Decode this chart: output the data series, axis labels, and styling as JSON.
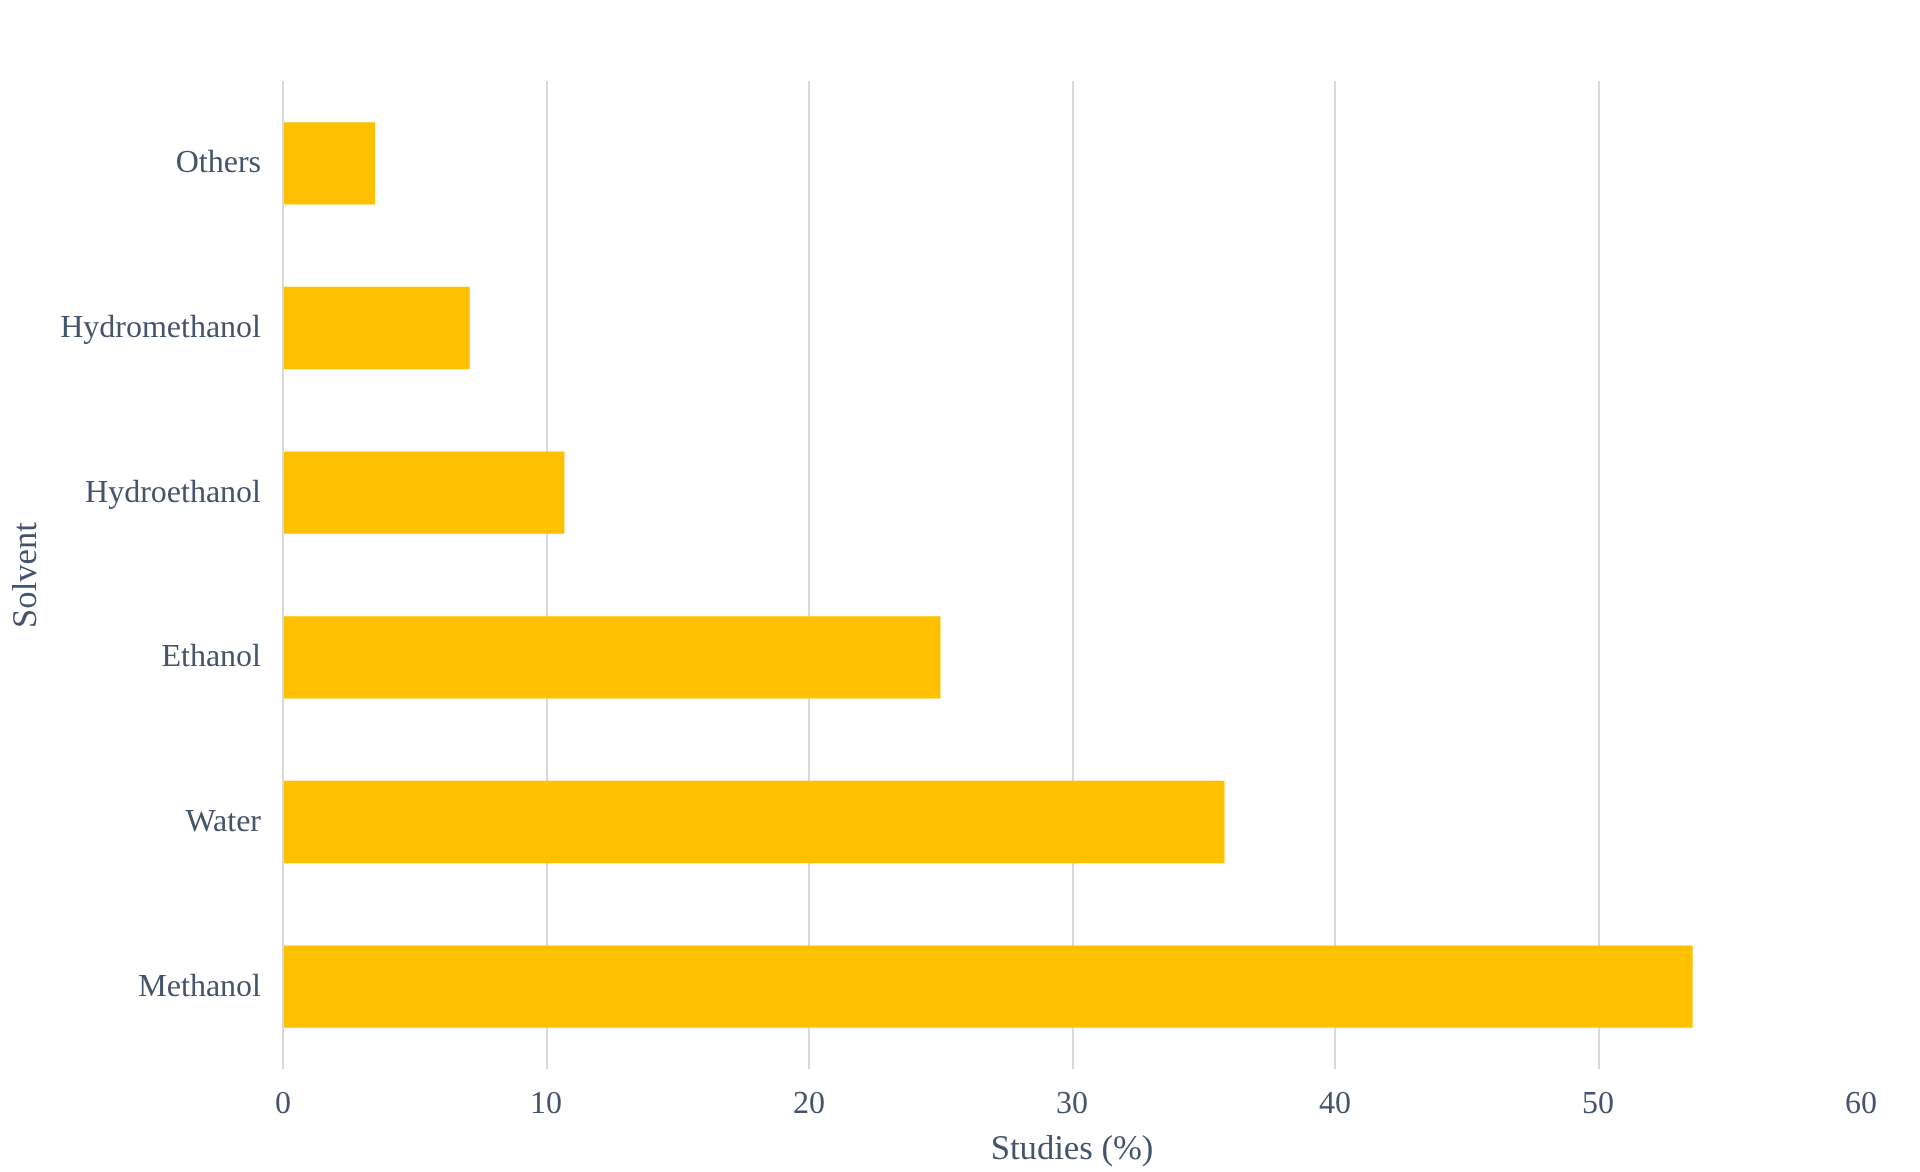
{
  "chart_data": {
    "type": "bar",
    "orientation": "horizontal",
    "xlabel": "Studies (%)",
    "ylabel": "Solvent",
    "categories": [
      "Others",
      "Hydromethanol",
      "Hydroethanol",
      "Ethanol",
      "Water",
      "Methanol"
    ],
    "values": [
      3.5,
      7.1,
      10.7,
      25.0,
      35.8,
      53.6
    ],
    "color": "#ffc000",
    "xlim": [
      0,
      60
    ],
    "xticks": [
      0,
      10,
      20,
      30,
      40,
      50,
      60
    ],
    "grid": "x"
  }
}
